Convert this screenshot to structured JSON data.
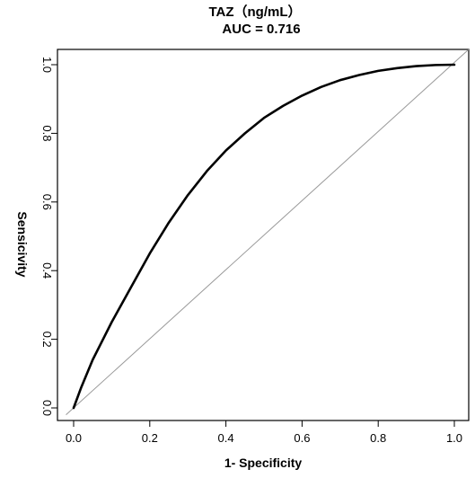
{
  "chart_data": {
    "type": "line",
    "title": "TAZ（ng/mL）",
    "subtitle": "AUC = 0.716",
    "xlabel": "1- Specificity",
    "ylabel": "Sensicivity",
    "xlim": [
      0.0,
      1.0
    ],
    "ylim": [
      0.0,
      1.0
    ],
    "x_ticks": [
      "0.0",
      "0.2",
      "0.4",
      "0.6",
      "0.8",
      "1.0"
    ],
    "y_ticks": [
      "0.0",
      "0.2",
      "0.4",
      "0.6",
      "0.8",
      "1.0"
    ],
    "grid": false,
    "legend": "none",
    "series": [
      {
        "x": [
          0.0,
          0.02,
          0.05,
          0.1,
          0.15,
          0.2,
          0.25,
          0.3,
          0.35,
          0.4,
          0.45,
          0.5,
          0.55,
          0.6,
          0.65,
          0.7,
          0.75,
          0.8,
          0.85,
          0.9,
          0.95,
          1.0
        ],
        "y": [
          0.0,
          0.06,
          0.14,
          0.25,
          0.35,
          0.45,
          0.54,
          0.62,
          0.69,
          0.75,
          0.8,
          0.845,
          0.88,
          0.91,
          0.935,
          0.955,
          0.97,
          0.982,
          0.99,
          0.996,
          0.999,
          1.0
        ],
        "color": "#000000"
      },
      {
        "x": [
          0.0,
          1.0
        ],
        "y": [
          0.0,
          1.0
        ],
        "color": "#999999"
      }
    ]
  }
}
